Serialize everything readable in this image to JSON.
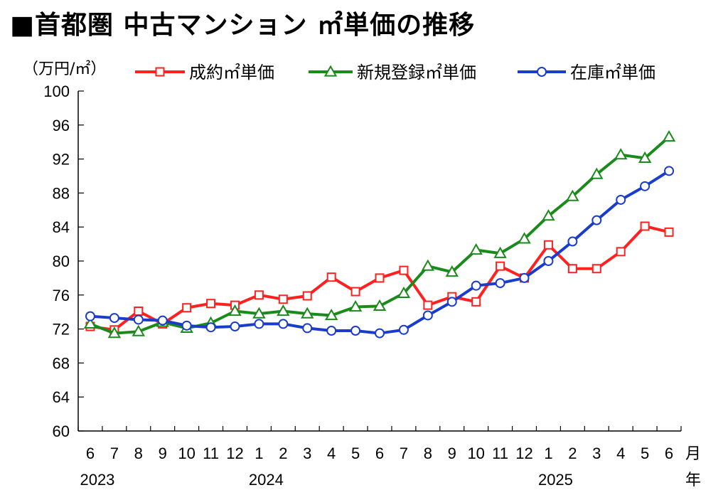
{
  "title": "■首都圏 中古マンション ㎡単価の推移",
  "chart_data": {
    "type": "line",
    "title": "■首都圏 中古マンション ㎡単価の推移",
    "ylabel": "（万円/㎡）",
    "xlabel": "月",
    "xlabel2": "年",
    "ylim": [
      60,
      100
    ],
    "yticks": [
      60,
      64,
      68,
      72,
      76,
      80,
      84,
      88,
      92,
      96,
      100
    ],
    "categories": [
      "6",
      "7",
      "8",
      "9",
      "10",
      "11",
      "12",
      "1",
      "2",
      "3",
      "4",
      "5",
      "6",
      "7",
      "8",
      "9",
      "10",
      "11",
      "12",
      "1",
      "2",
      "3",
      "4",
      "5",
      "6"
    ],
    "years": [
      {
        "label": "2023",
        "index": 0
      },
      {
        "label": "2024",
        "index": 7
      },
      {
        "label": "2025",
        "index": 19
      }
    ],
    "grid": false,
    "legend_position": "top",
    "series": [
      {
        "name": "成約㎡単価",
        "color": "#ff2020",
        "marker": "square",
        "values": [
          72.3,
          71.9,
          74.1,
          72.6,
          74.5,
          75.0,
          74.8,
          76.0,
          75.5,
          75.9,
          78.1,
          76.4,
          78.0,
          78.9,
          74.8,
          75.8,
          75.2,
          79.4,
          78.0,
          81.9,
          79.1,
          79.1,
          81.1,
          84.1,
          83.4
        ]
      },
      {
        "name": "新規登録㎡単価",
        "color": "#1a8a1a",
        "marker": "triangle",
        "values": [
          72.6,
          71.5,
          71.7,
          72.8,
          72.1,
          72.7,
          74.1,
          73.8,
          74.1,
          73.8,
          73.6,
          74.6,
          74.7,
          76.2,
          79.4,
          78.7,
          81.3,
          80.9,
          82.6,
          85.3,
          87.6,
          90.2,
          92.5,
          92.1,
          94.6
        ]
      },
      {
        "name": "在庫㎡単価",
        "color": "#1a3ccc",
        "marker": "circle",
        "values": [
          73.5,
          73.3,
          73.1,
          73.0,
          72.4,
          72.2,
          72.3,
          72.6,
          72.6,
          72.1,
          71.8,
          71.8,
          71.5,
          71.9,
          73.6,
          75.2,
          77.1,
          77.4,
          78.0,
          80.0,
          82.3,
          84.8,
          87.2,
          88.8,
          90.6
        ]
      }
    ]
  }
}
